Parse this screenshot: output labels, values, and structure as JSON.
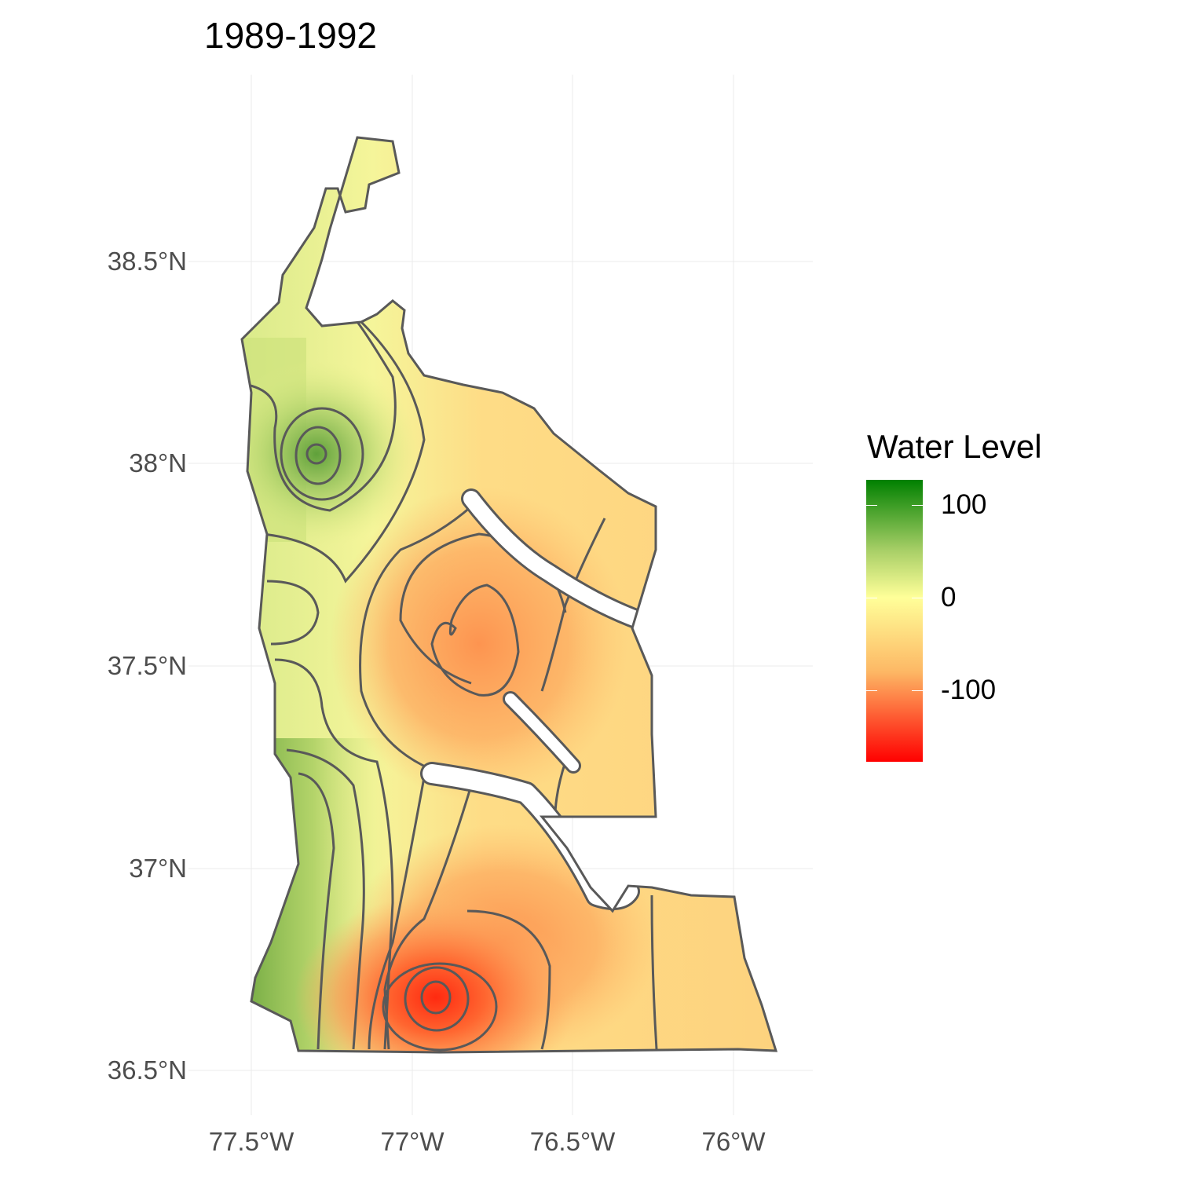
{
  "chart_data": {
    "type": "heatmap",
    "subtype": "filled contour map",
    "title": "1989-1992",
    "x_ticks": [
      "77.5°W",
      "77°W",
      "76.5°W",
      "76°W"
    ],
    "x_tick_values": [
      -77.5,
      -77.0,
      -76.5,
      -76.0
    ],
    "y_ticks": [
      "38.5°N",
      "38°N",
      "37.5°N",
      "37°N",
      "36.5°N"
    ],
    "y_tick_values": [
      38.5,
      38.0,
      37.5,
      37.0,
      36.5
    ],
    "xlim": [
      -77.7,
      -75.75
    ],
    "ylim": [
      36.4,
      38.95
    ],
    "grid": true,
    "legend": {
      "title": "Water Level",
      "position": "right",
      "ticks": [
        "100",
        "0",
        "-100"
      ],
      "tick_values": [
        100,
        0,
        -100
      ],
      "range": [
        -177,
        127
      ],
      "colors": {
        "high": "#008000",
        "mid": "#ffff99",
        "low": "#ff0000"
      }
    },
    "features": {
      "high_spot_approx": {
        "lon": -77.3,
        "lat": 38.03,
        "level": 100
      },
      "low_spot_approx": {
        "lon": -76.93,
        "lat": 36.68,
        "level": -170
      },
      "west_strip_level": 60,
      "central_low_level": -80
    },
    "contour_color": "#595959"
  }
}
